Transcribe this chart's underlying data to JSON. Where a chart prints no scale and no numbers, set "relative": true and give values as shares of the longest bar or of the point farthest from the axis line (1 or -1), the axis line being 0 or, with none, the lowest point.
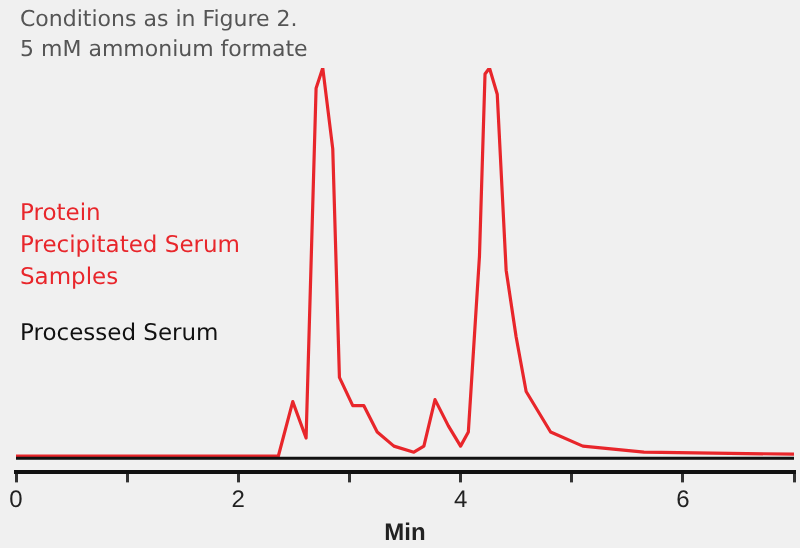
{
  "chart_data": {
    "type": "line",
    "title": "Conditions as in Figure 2.",
    "subtitle": "5 mM ammonium formate",
    "xlabel": "Min",
    "relative": true,
    "xlim": [
      0,
      7
    ],
    "xticks": [
      0,
      {
        "value": 1,
        "label": null
      },
      2,
      {
        "value": 3,
        "label": null
      },
      4,
      {
        "value": 5,
        "label": null
      },
      6,
      {
        "value": 7,
        "label": null
      }
    ],
    "legend": "left",
    "marker": "none",
    "line_style": "solid",
    "series": [
      {
        "name": "Protein Precipitated Serum Samples",
        "color": "#e8262b",
        "x": [
          0,
          1,
          2,
          2.36,
          2.49,
          2.61,
          2.7,
          2.76,
          2.85,
          2.91,
          3.03,
          3.13,
          3.25,
          3.4,
          3.58,
          3.67,
          3.77,
          3.89,
          4.0,
          4.07,
          4.17,
          4.22,
          4.26,
          4.33,
          4.41,
          4.5,
          4.59,
          4.81,
          5.1,
          5.65,
          7
        ],
        "values": [
          0.04,
          0.04,
          0.04,
          0.04,
          0.175,
          0.085,
          0.95,
          1.0,
          0.8,
          0.235,
          0.165,
          0.165,
          0.1,
          0.065,
          0.05,
          0.065,
          0.18,
          0.115,
          0.065,
          0.1,
          0.535,
          0.985,
          1.0,
          0.935,
          0.5,
          0.335,
          0.2,
          0.1,
          0.065,
          0.05,
          0.045
        ]
      },
      {
        "name": "Processed Serum",
        "color": "#111111",
        "x": [
          0,
          7
        ],
        "values": [
          0.035,
          0.035
        ]
      }
    ]
  }
}
